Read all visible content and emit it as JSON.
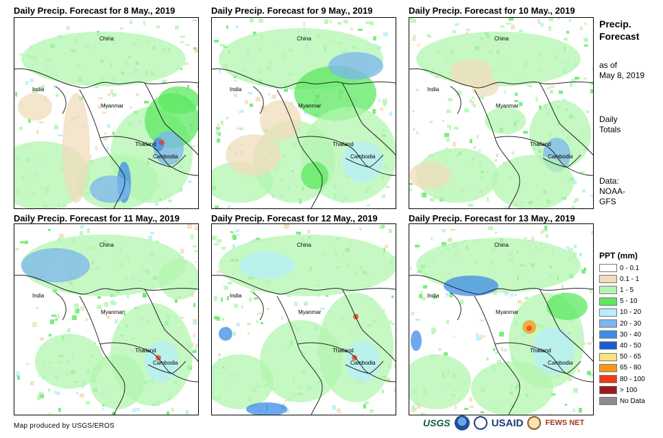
{
  "panels": [
    {
      "title": "Daily Precip. Forecast for 8 May., 2019",
      "country_labels": [
        "China",
        "India",
        "Myanmar",
        "Thailand",
        "Cambodia"
      ]
    },
    {
      "title": "Daily Precip. Forecast for 9 May., 2019",
      "country_labels": [
        "China",
        "India",
        "Myanmar",
        "Thailand",
        "Cambodia"
      ]
    },
    {
      "title": "Daily Precip. Forecast for 10 May., 2019",
      "country_labels": [
        "China",
        "India",
        "Myanmar",
        "Thailand",
        "Cambodia"
      ]
    },
    {
      "title": "Daily Precip. Forecast for 11 May., 2019",
      "country_labels": [
        "China",
        "India",
        "Myanmar",
        "Thailand",
        "Cambodia"
      ]
    },
    {
      "title": "Daily Precip. Forecast for 12 May., 2019",
      "country_labels": [
        "China",
        "India",
        "Myanmar",
        "Thailand",
        "Cambodia"
      ]
    },
    {
      "title": "Daily Precip. Forecast for 13 May., 2019",
      "country_labels": [
        "China",
        "India",
        "Myanmar",
        "Thailand",
        "Cambodia"
      ]
    }
  ],
  "sidebar": {
    "title_line1": "Precip.",
    "title_line2": "Forecast",
    "asof_line1": "as of",
    "asof_line2": "May 8, 2019",
    "daily_line1": "Daily",
    "daily_line2": "Totals",
    "data_line1": "Data:",
    "data_line2": "NOAA-",
    "data_line3": "GFS"
  },
  "legend": {
    "title": "PPT (mm)",
    "items": [
      {
        "label": "0 - 0.1",
        "color": "#ffffff"
      },
      {
        "label": "0.1 - 1",
        "color": "#f0dcbc"
      },
      {
        "label": "1 - 5",
        "color": "#b3f5b0"
      },
      {
        "label": "5 - 10",
        "color": "#5ee862"
      },
      {
        "label": "10 - 20",
        "color": "#b6effb"
      },
      {
        "label": "20 - 30",
        "color": "#7bb6ee"
      },
      {
        "label": "30 - 40",
        "color": "#3d8ce8"
      },
      {
        "label": "40 - 50",
        "color": "#1a5ad6"
      },
      {
        "label": "50 - 65",
        "color": "#fbe27a"
      },
      {
        "label": "65 - 80",
        "color": "#f59a16"
      },
      {
        "label": "80 - 100",
        "color": "#f23a14"
      },
      {
        "label": "> 100",
        "color": "#9c1a1a"
      },
      {
        "label": "No Data",
        "color": "#8c8c8c"
      }
    ]
  },
  "footer": {
    "credit": "Map produced by USGS/EROS",
    "logo_usgs": "USGS",
    "logo_usaid": "USAID",
    "logo_fews": "FEWS NET"
  }
}
